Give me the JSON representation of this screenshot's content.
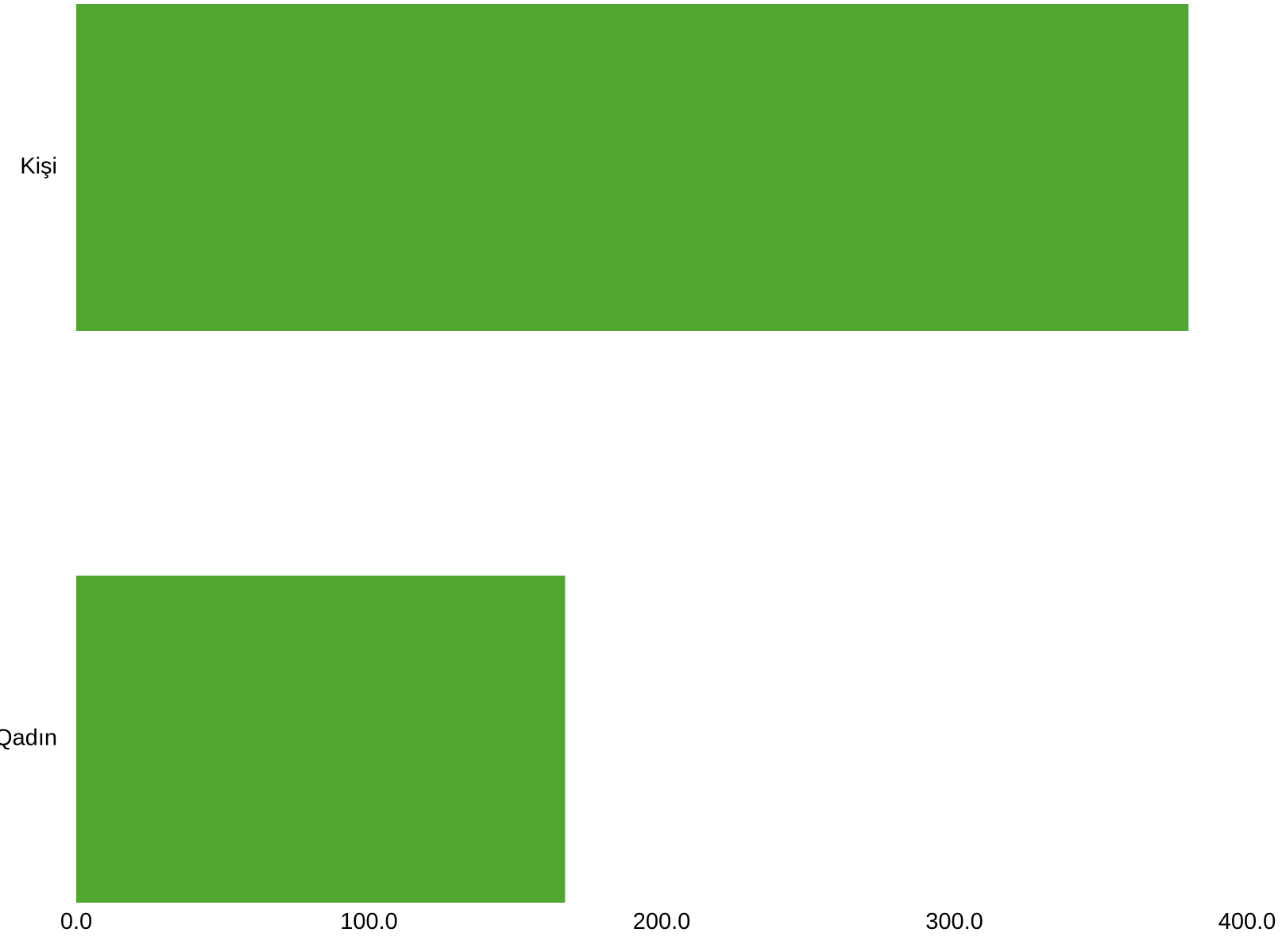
{
  "chart_data": {
    "type": "bar",
    "orientation": "horizontal",
    "categories": [
      "Kişi",
      "Qadın"
    ],
    "values": [
      380,
      167
    ],
    "bar_color": "#4fa730",
    "xlim": [
      0,
      400
    ],
    "x_ticks": [
      "0.0",
      "100.0",
      "200.0",
      "300.0",
      "400.0"
    ],
    "grid": false,
    "legend": "none",
    "title": "",
    "xlabel": "",
    "ylabel": ""
  }
}
